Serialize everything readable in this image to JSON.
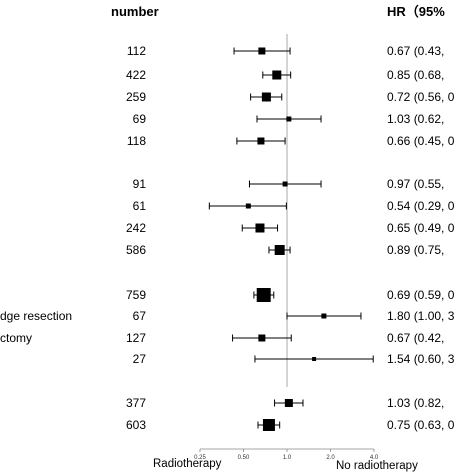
{
  "headers": {
    "number": "number",
    "hr": "HR（95%"
  },
  "rows": [
    {
      "subgroup": "",
      "n": "112",
      "hr_text": "0.67 (0.43,  "
    },
    {
      "subgroup": "",
      "n": "422",
      "hr_text": "0.85 (0.68,  "
    },
    {
      "subgroup": "",
      "n": "259",
      "hr_text": "0.72 (0.56, 0"
    },
    {
      "subgroup": "",
      "n": "69",
      "hr_text": "1.03 (0.62,  "
    },
    {
      "subgroup": "",
      "n": "118",
      "hr_text": "0.66 (0.45, 0"
    },
    {
      "subgroup": "",
      "n": "91",
      "hr_text": "0.97 (0.55,  "
    },
    {
      "subgroup": "",
      "n": "61",
      "hr_text": "0.54 (0.29, 0"
    },
    {
      "subgroup": "",
      "n": "242",
      "hr_text": "0.65 (0.49, 0"
    },
    {
      "subgroup": "",
      "n": "586",
      "hr_text": "0.89 (0.75,  "
    },
    {
      "subgroup": "",
      "n": "759",
      "hr_text": "0.69 (0.59, 0"
    },
    {
      "subgroup": "dge resection",
      "n": "67",
      "hr_text": "1.80 (1.00, 3"
    },
    {
      "subgroup": "ctomy",
      "n": "127",
      "hr_text": "0.67 (0.42,  "
    },
    {
      "subgroup": "",
      "n": "27",
      "hr_text": "1.54 (0.60, 3"
    },
    {
      "subgroup": "",
      "n": "377",
      "hr_text": "1.03 (0.82,  "
    },
    {
      "subgroup": "",
      "n": "603",
      "hr_text": "0.75 (0.63, 0"
    }
  ],
  "chart_data": {
    "type": "forest",
    "scale": "log2",
    "xlim": [
      0.25,
      4.0
    ],
    "xticks": [
      "0.25",
      "0.50",
      "1.0",
      "2.0",
      "4.0"
    ],
    "reference_line": 1.0,
    "left_label": "Radiotherapy",
    "right_label": "No radiotherapy",
    "points": [
      {
        "n": 112,
        "hr": 0.67,
        "lo": 0.43,
        "hi": 1.05
      },
      {
        "n": 422,
        "hr": 0.85,
        "lo": 0.68,
        "hi": 1.06
      },
      {
        "n": 259,
        "hr": 0.72,
        "lo": 0.56,
        "hi": 0.92
      },
      {
        "n": 69,
        "hr": 1.03,
        "lo": 0.62,
        "hi": 1.72
      },
      {
        "n": 118,
        "hr": 0.66,
        "lo": 0.45,
        "hi": 0.97
      },
      {
        "n": 91,
        "hr": 0.97,
        "lo": 0.55,
        "hi": 1.72
      },
      {
        "n": 61,
        "hr": 0.54,
        "lo": 0.29,
        "hi": 0.99
      },
      {
        "n": 242,
        "hr": 0.65,
        "lo": 0.49,
        "hi": 0.86
      },
      {
        "n": 586,
        "hr": 0.89,
        "lo": 0.75,
        "hi": 1.05
      },
      {
        "n": 759,
        "hr": 0.69,
        "lo": 0.59,
        "hi": 0.81
      },
      {
        "n": 67,
        "hr": 1.8,
        "lo": 1.0,
        "hi": 3.25
      },
      {
        "n": 127,
        "hr": 0.67,
        "lo": 0.42,
        "hi": 1.07
      },
      {
        "n": 27,
        "hr": 1.54,
        "lo": 0.6,
        "hi": 3.95
      },
      {
        "n": 377,
        "hr": 1.03,
        "lo": 0.82,
        "hi": 1.29
      },
      {
        "n": 603,
        "hr": 0.75,
        "lo": 0.63,
        "hi": 0.89
      }
    ]
  }
}
